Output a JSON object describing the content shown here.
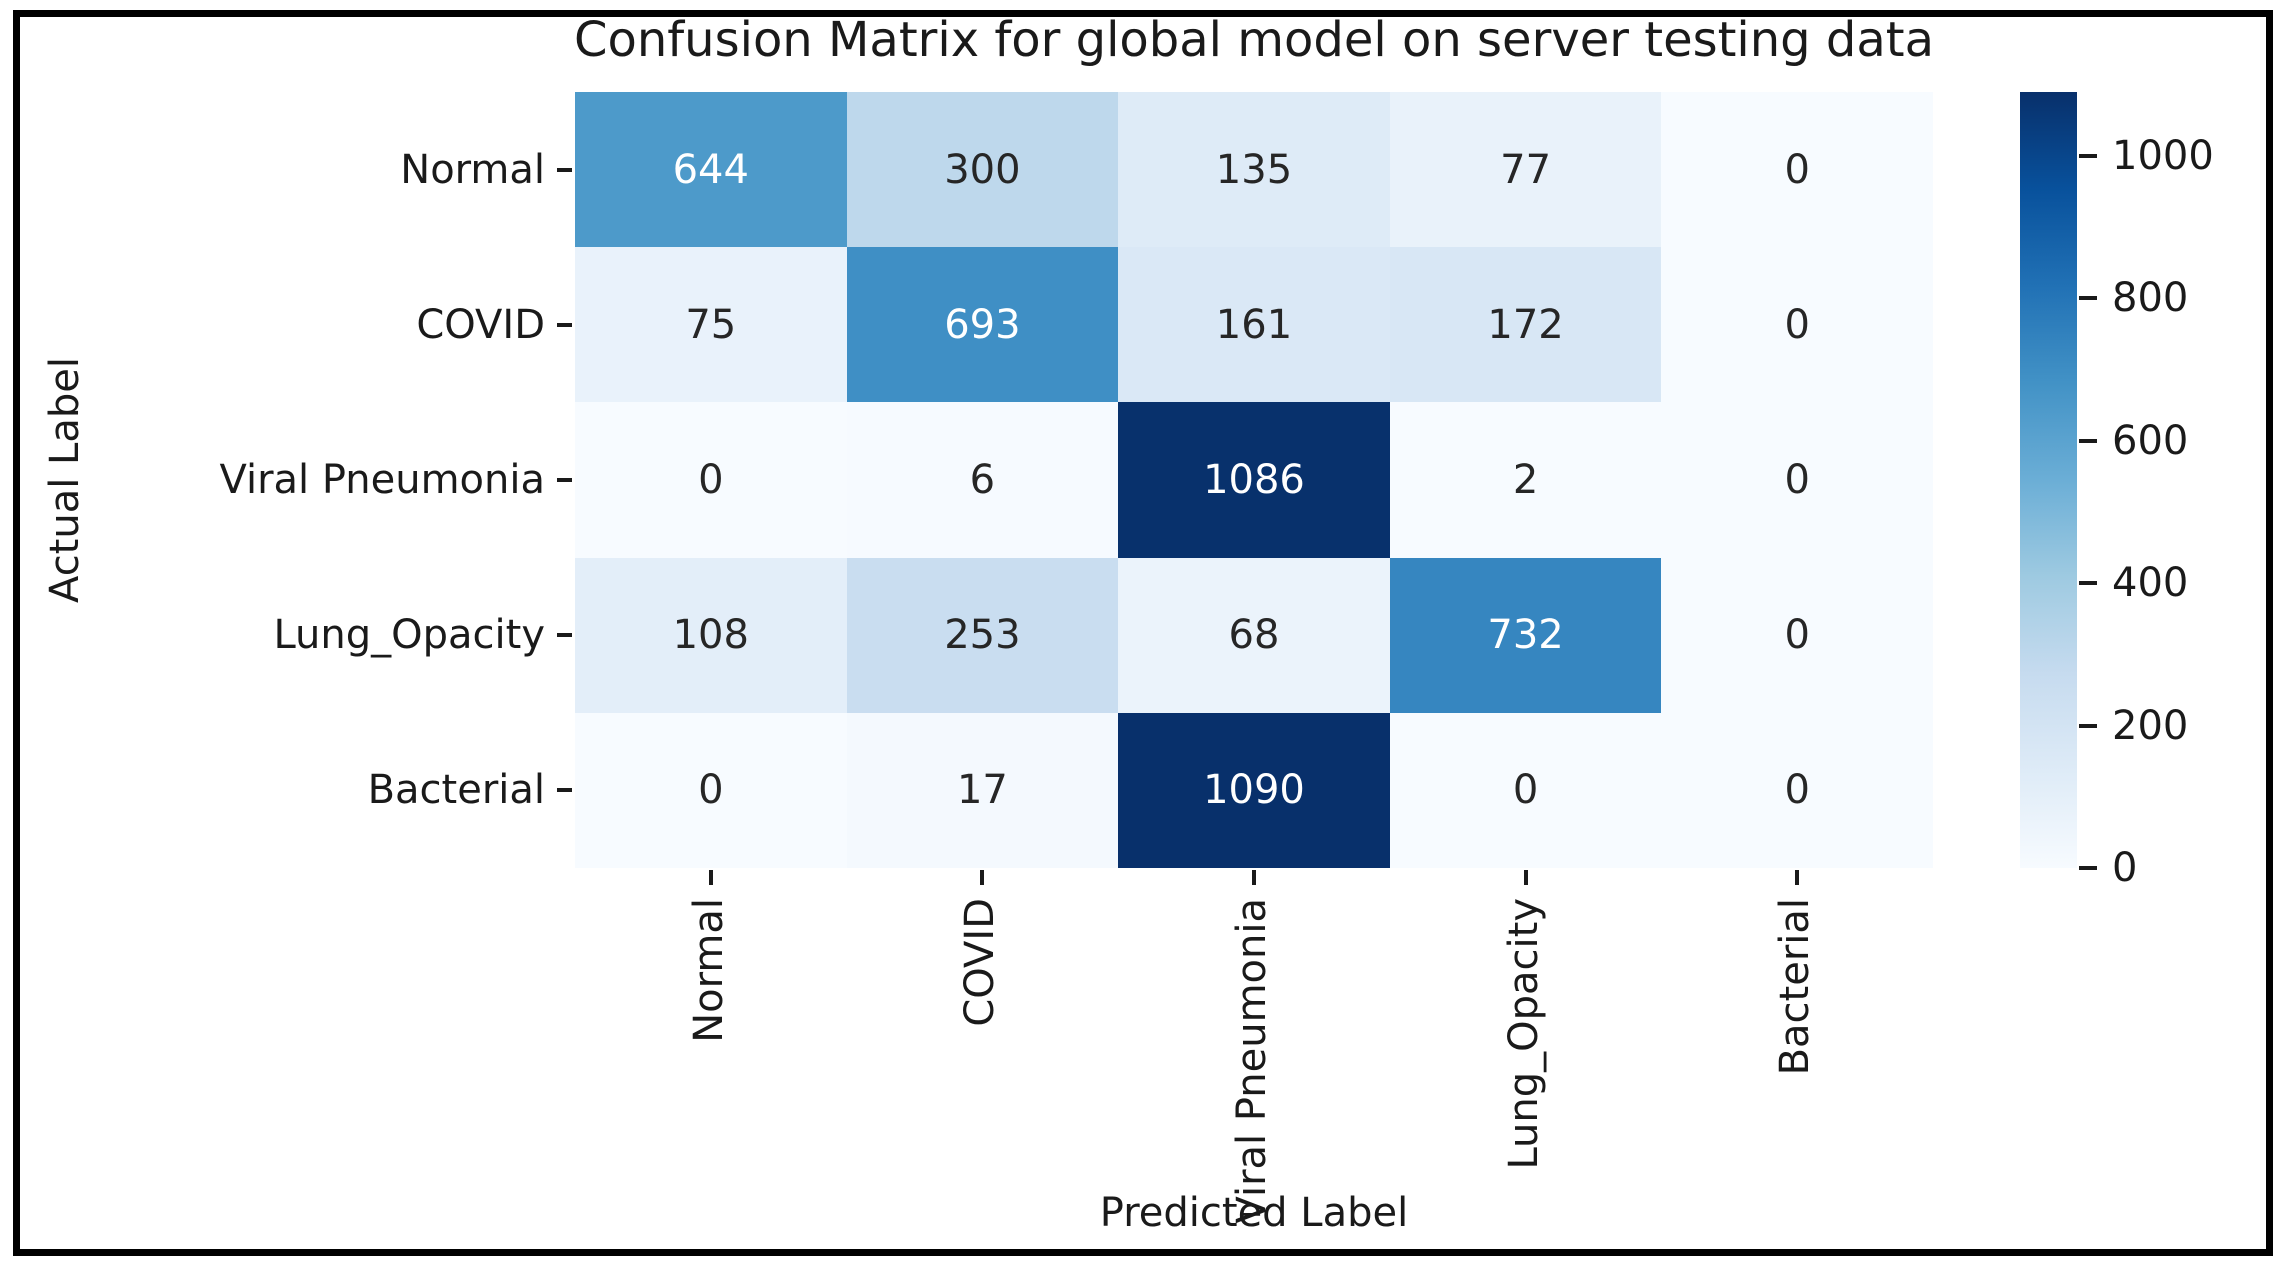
{
  "chart_data": {
    "type": "heatmap",
    "title": "Confusion Matrix for global model on server testing data",
    "xlabel": "Predicted Label",
    "ylabel": "Actual Label",
    "x_categories": [
      "Normal",
      "COVID",
      "Viral Pneumonia",
      "Lung_Opacity",
      "Bacterial"
    ],
    "y_categories": [
      "Normal",
      "COVID",
      "Viral Pneumonia",
      "Lung_Opacity",
      "Bacterial"
    ],
    "values": [
      [
        644,
        300,
        135,
        77,
        0
      ],
      [
        75,
        693,
        161,
        172,
        0
      ],
      [
        0,
        6,
        1086,
        2,
        0
      ],
      [
        108,
        253,
        68,
        732,
        0
      ],
      [
        0,
        17,
        1090,
        0,
        0
      ]
    ],
    "vmin": 0,
    "vmax": 1090,
    "colormap": "Blues",
    "colormap_stops": [
      {
        "t": 0.0,
        "color": "#f7fbff"
      },
      {
        "t": 0.125,
        "color": "#deebf7"
      },
      {
        "t": 0.25,
        "color": "#c6dbef"
      },
      {
        "t": 0.375,
        "color": "#9ecae1"
      },
      {
        "t": 0.5,
        "color": "#6baed6"
      },
      {
        "t": 0.625,
        "color": "#4292c6"
      },
      {
        "t": 0.75,
        "color": "#2171b5"
      },
      {
        "t": 0.875,
        "color": "#08519c"
      },
      {
        "t": 1.0,
        "color": "#08306b"
      }
    ],
    "colorbar_ticks": [
      0,
      200,
      400,
      600,
      800,
      1000
    ],
    "legend_position": "right-colorbar",
    "grid": false,
    "annotation_colors": {
      "on_dark": "#ffffff",
      "on_light": "#262626"
    },
    "axis_color": "#1a1a1a",
    "border_color": "#000000"
  }
}
